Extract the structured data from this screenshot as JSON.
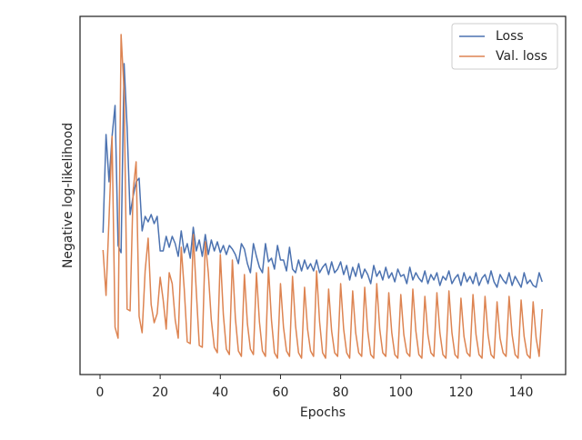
{
  "chart_data": {
    "type": "line",
    "xlabel": "Epochs",
    "ylabel": "Negative log-likelihood",
    "xlim": [
      -6.65,
      154.8
    ],
    "ylim": [
      0,
      394
    ],
    "xticks": [
      0,
      20,
      40,
      60,
      80,
      100,
      120,
      140
    ],
    "legend": "upper right",
    "x": [
      1,
      2,
      3,
      4,
      5,
      6,
      7,
      8,
      9,
      10,
      11,
      12,
      13,
      14,
      15,
      16,
      17,
      18,
      19,
      20,
      21,
      22,
      23,
      24,
      25,
      26,
      27,
      28,
      29,
      30,
      31,
      32,
      33,
      34,
      35,
      36,
      37,
      38,
      39,
      40,
      41,
      42,
      43,
      44,
      45,
      46,
      47,
      48,
      49,
      50,
      51,
      52,
      53,
      54,
      55,
      56,
      57,
      58,
      59,
      60,
      61,
      62,
      63,
      64,
      65,
      66,
      67,
      68,
      69,
      70,
      71,
      72,
      73,
      74,
      75,
      76,
      77,
      78,
      79,
      80,
      81,
      82,
      83,
      84,
      85,
      86,
      87,
      88,
      89,
      90,
      91,
      92,
      93,
      94,
      95,
      96,
      97,
      98,
      99,
      100,
      101,
      102,
      103,
      104,
      105,
      106,
      107,
      108,
      109,
      110,
      111,
      112,
      113,
      114,
      115,
      116,
      117,
      118,
      119,
      120,
      121,
      122,
      123,
      124,
      125,
      126,
      127,
      128,
      129,
      130,
      131,
      132,
      133,
      134,
      135,
      136,
      137,
      138,
      139,
      140,
      141,
      142,
      143,
      144,
      145,
      146,
      147
    ],
    "series": [
      {
        "name": "Loss",
        "color": "#4c72b0",
        "values": [
          156,
          264,
          212,
          262,
          296,
          142,
          134,
          342,
          272,
          176,
          196,
          212,
          216,
          158,
          174,
          168,
          176,
          166,
          174,
          136,
          136,
          152,
          140,
          152,
          144,
          130,
          158,
          134,
          144,
          128,
          162,
          136,
          148,
          130,
          154,
          132,
          148,
          136,
          146,
          134,
          142,
          132,
          142,
          138,
          132,
          122,
          144,
          138,
          122,
          112,
          144,
          130,
          118,
          112,
          144,
          124,
          128,
          116,
          142,
          126,
          126,
          114,
          140,
          116,
          112,
          126,
          114,
          126,
          116,
          122,
          114,
          126,
          112,
          118,
          122,
          110,
          124,
          112,
          116,
          124,
          110,
          120,
          104,
          118,
          108,
          122,
          106,
          116,
          110,
          100,
          120,
          108,
          114,
          104,
          118,
          106,
          112,
          102,
          116,
          108,
          110,
          100,
          118,
          104,
          112,
          106,
          102,
          114,
          100,
          110,
          104,
          112,
          98,
          108,
          104,
          114,
          100,
          106,
          110,
          98,
          112,
          102,
          108,
          100,
          112,
          98,
          106,
          110,
          100,
          114,
          102,
          96,
          110,
          104,
          100,
          112,
          98,
          108,
          102,
          96,
          112,
          100,
          104,
          98,
          96,
          112,
          102
        ]
      },
      {
        "name": "Val. loss",
        "color": "#dd8452",
        "values": [
          137,
          87,
          172,
          262,
          52,
          40,
          374,
          312,
          72,
          70,
          202,
          234,
          64,
          46,
          114,
          150,
          77,
          57,
          67,
          107,
          82,
          50,
          112,
          100,
          60,
          40,
          140,
          94,
          36,
          34,
          154,
          92,
          32,
          30,
          146,
          112,
          60,
          30,
          24,
          132,
          66,
          28,
          22,
          126,
          62,
          26,
          20,
          110,
          56,
          28,
          22,
          112,
          58,
          26,
          20,
          118,
          60,
          24,
          18,
          100,
          52,
          26,
          20,
          108,
          54,
          24,
          18,
          96,
          50,
          26,
          20,
          114,
          58,
          24,
          18,
          94,
          48,
          24,
          20,
          100,
          50,
          24,
          18,
          92,
          46,
          24,
          20,
          96,
          48,
          22,
          18,
          100,
          50,
          24,
          20,
          90,
          46,
          22,
          18,
          88,
          44,
          24,
          20,
          94,
          48,
          22,
          18,
          86,
          44,
          24,
          20,
          90,
          46,
          22,
          18,
          92,
          46,
          22,
          18,
          84,
          42,
          24,
          20,
          88,
          44,
          22,
          18,
          86,
          44,
          22,
          18,
          80,
          40,
          24,
          20,
          86,
          44,
          22,
          18,
          82,
          42,
          22,
          18,
          80,
          40,
          20,
          72
        ]
      }
    ]
  }
}
